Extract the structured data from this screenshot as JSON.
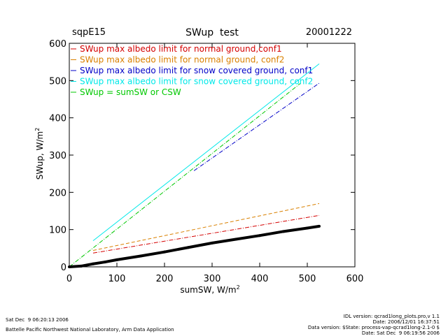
{
  "chart_data": {
    "type": "line",
    "title": "SWup  test",
    "site": "sqpE15",
    "date": "20001222",
    "xlabel": "sumSW, W/m",
    "xlabel_sup": "2",
    "ylabel": "SWup, W/m",
    "ylabel_sup": "2",
    "xlim": [
      0,
      600
    ],
    "ylim": [
      0,
      600
    ],
    "x_ticks": [
      0,
      100,
      200,
      300,
      400,
      500,
      600
    ],
    "y_ticks": [
      0,
      100,
      200,
      300,
      400,
      500,
      600
    ],
    "grid": false,
    "legend_position": "top-left",
    "series": [
      {
        "name": "SWup max albedo limit for normal ground,conf1",
        "color": "#d40000",
        "dash": "6,2,1,2",
        "x": [
          50,
          525
        ],
        "y": [
          37,
          138
        ]
      },
      {
        "name": "SWup max albedo limit for normal ground, conf2",
        "color": "#d98000",
        "dash": "5,3",
        "x": [
          50,
          525
        ],
        "y": [
          44,
          170
        ]
      },
      {
        "name": "SWup max albedo limit for snow covered ground, conf1",
        "color": "#0000c8",
        "dash": "6,2,1,2",
        "x": [
          262,
          525
        ],
        "y": [
          258,
          493
        ]
      },
      {
        "name": "SWup max albedo limit for snow covered ground, conf2",
        "color": "#00e8e8",
        "dash": "",
        "x": [
          50,
          525
        ],
        "y": [
          70,
          545
        ]
      },
      {
        "name": "SWup = sumSW or CSW",
        "color": "#00c800",
        "dash": "6,2,1,2",
        "x": [
          0,
          485
        ],
        "y": [
          0,
          492
        ]
      }
    ],
    "observed": {
      "color": "#000000",
      "x": [
        0,
        25,
        50,
        75,
        100,
        150,
        200,
        250,
        300,
        350,
        400,
        450,
        500,
        525
      ],
      "y": [
        0,
        2,
        8,
        13,
        19,
        29,
        40,
        52,
        64,
        74,
        84,
        95,
        104,
        109
      ]
    }
  },
  "footer": {
    "left_date": "Sat Dec  9 06:20:13 2006",
    "left_lab": "Battelle Pacific Northwest National Laboratory, Arm Data Application",
    "right_line1": "IDL version: qcrad1long_plots.pro,v 1.1",
    "right_line2": "Date: 2006/12/01 16:37:51",
    "right_line3": "Data version: $State: process-vap-qcrad1long-2.1-0 $",
    "right_line4": "Date: Sat Dec  9 06:19:56 2006"
  }
}
